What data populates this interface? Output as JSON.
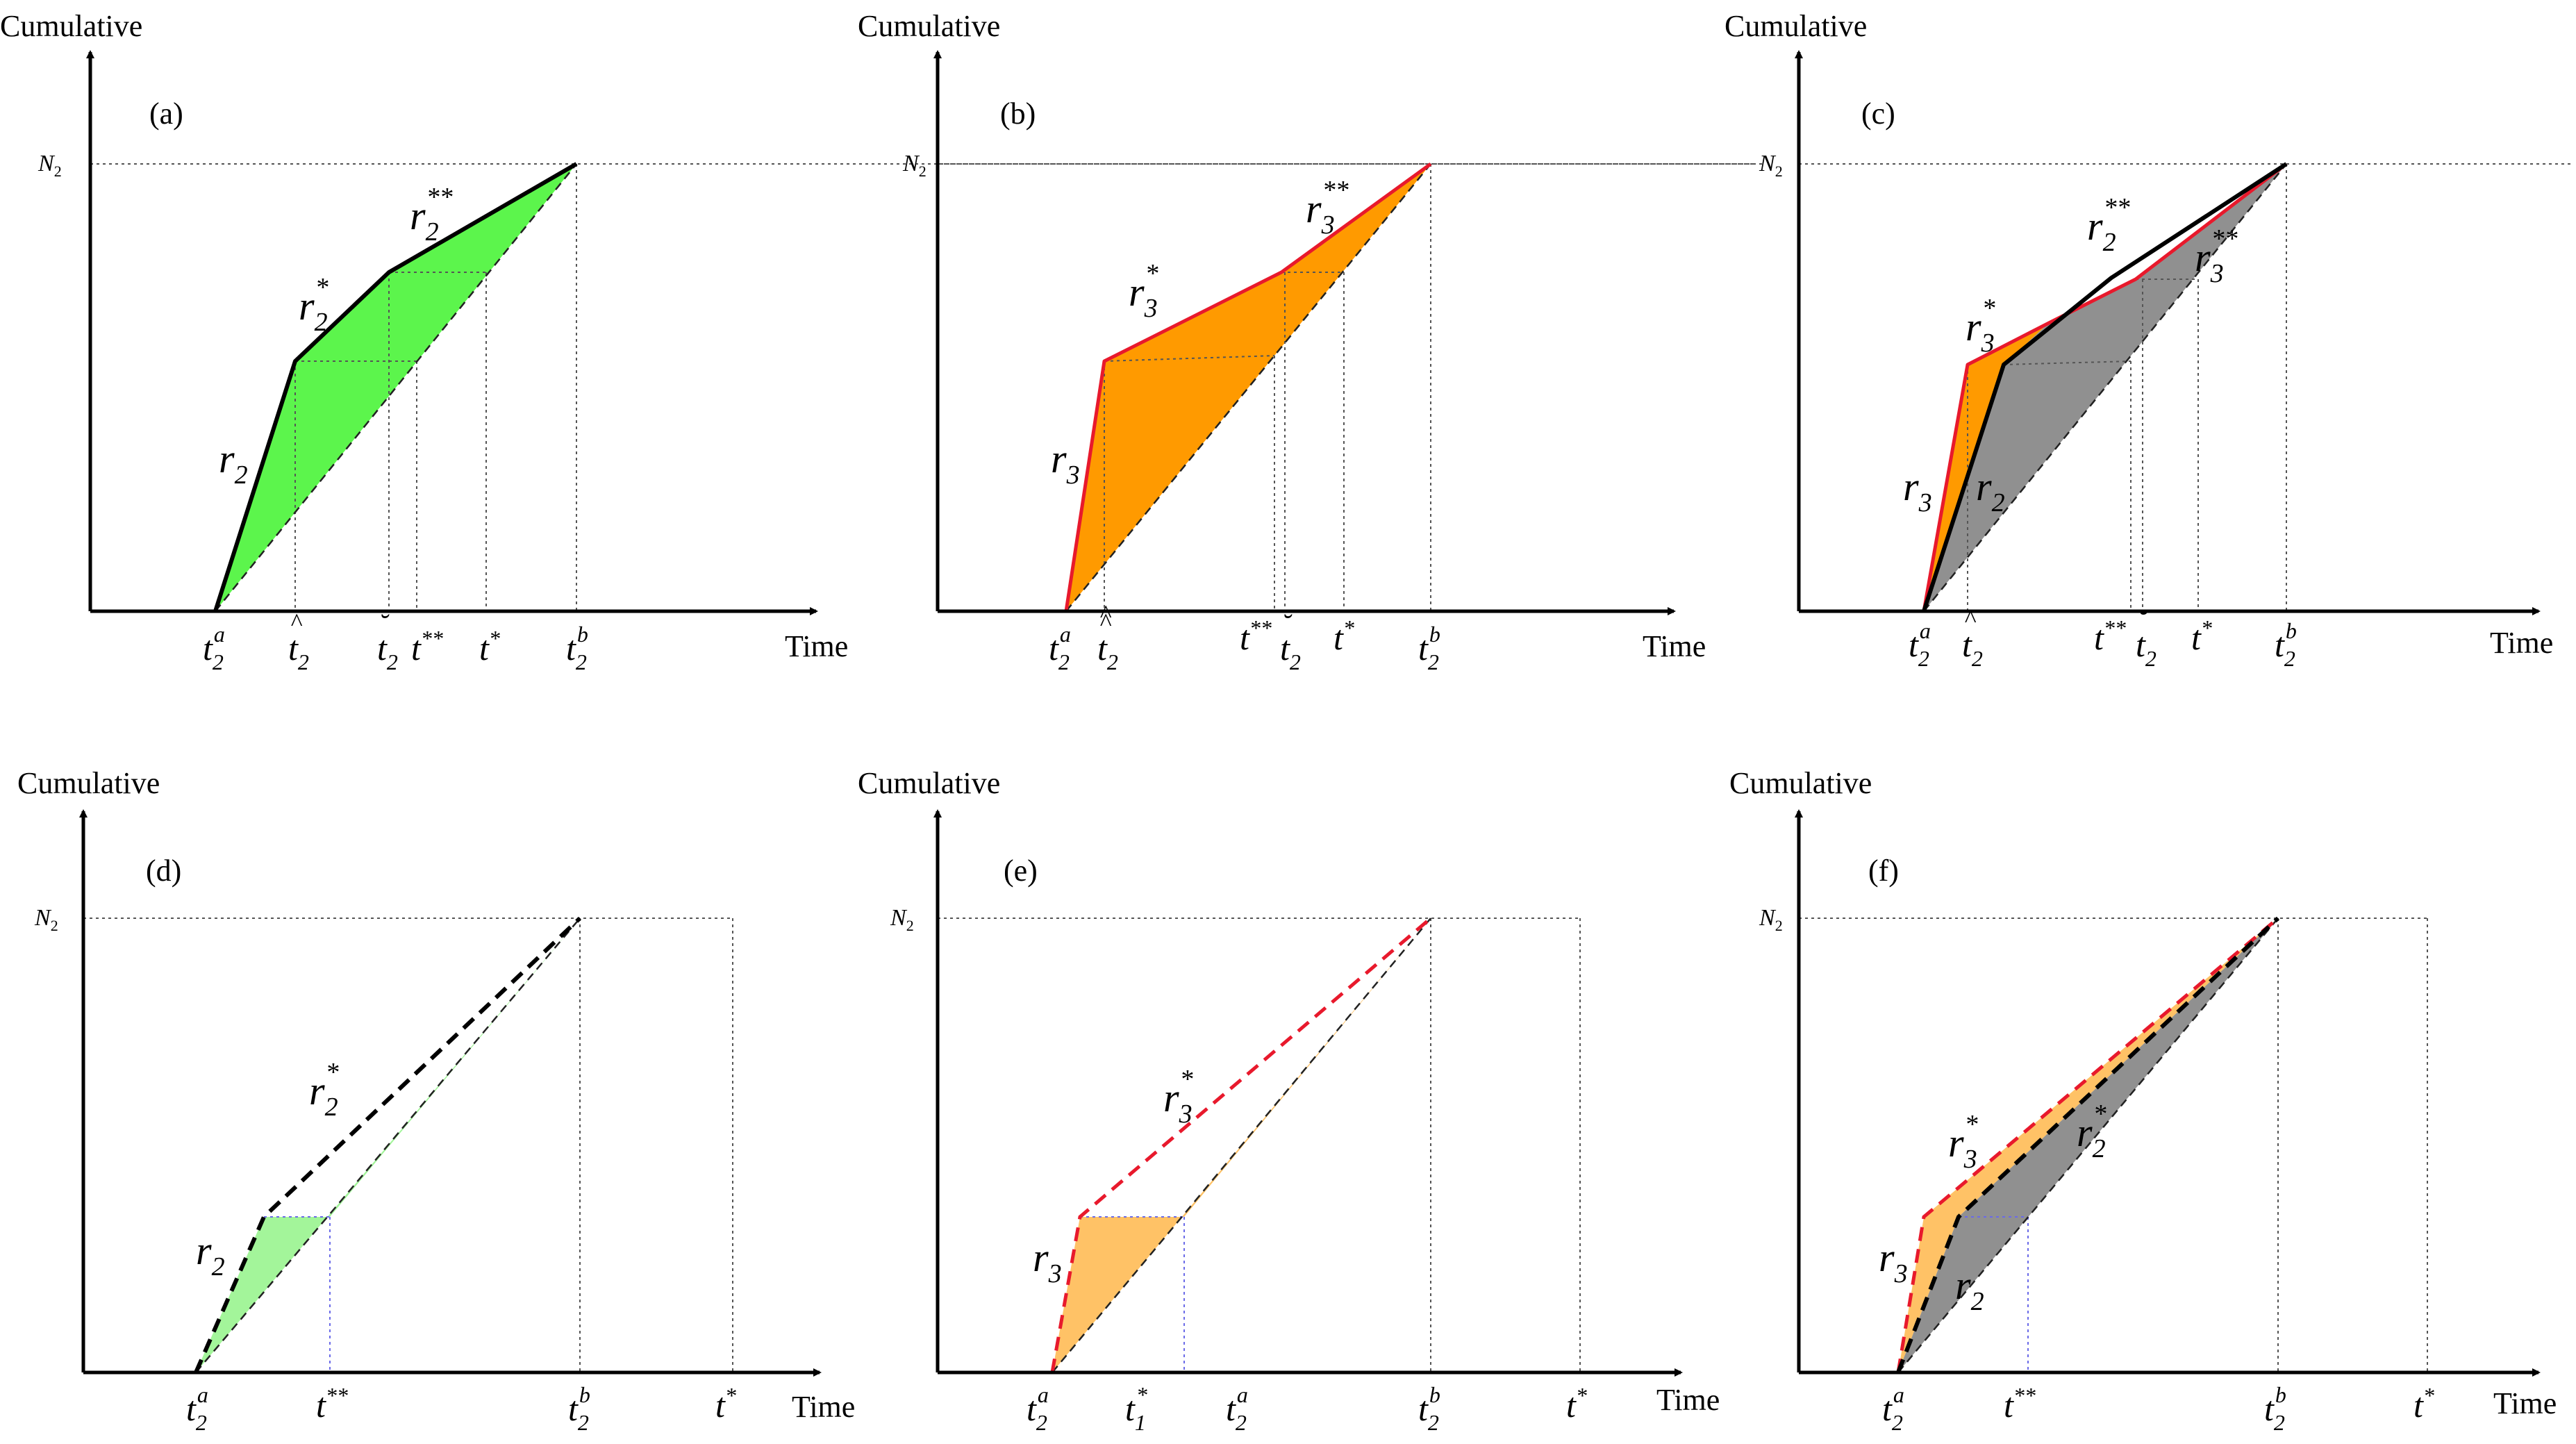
{
  "axis_labels": {
    "y": "Cumulative",
    "x": "Time",
    "n2": "N",
    "n2_sub": "2"
  },
  "panels": {
    "a": {
      "label": "(a)"
    },
    "b": {
      "label": "(b)"
    },
    "c": {
      "label": "(c)"
    },
    "d": {
      "label": "(d)"
    },
    "e": {
      "label": "(e)"
    },
    "f": {
      "label": "(f)"
    }
  },
  "symbols": {
    "r": "r",
    "t": "t",
    "sub2": "2",
    "sub3": "2",
    "sub_r3": "3",
    "sub1": "1",
    "sup_a": "a",
    "sup_b": "b",
    "star": "*",
    "dstar": "**",
    "hat": "^",
    "breve": "˘"
  },
  "colors": {
    "green": "#5cf54c",
    "light_green": "#a3f59a",
    "orange": "#ff9a00",
    "light_orange": "#ffc266",
    "gray": "#909090",
    "red_line": "#e8192c"
  }
}
